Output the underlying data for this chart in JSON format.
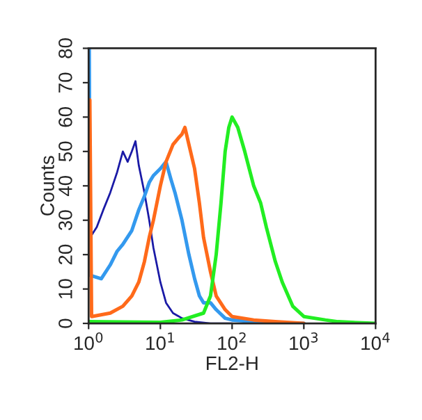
{
  "chart_data": {
    "type": "line",
    "xlabel": "FL2-H",
    "ylabel": "Counts",
    "log": "x",
    "xlim": [
      1,
      10000
    ],
    "ylim": [
      0,
      80
    ],
    "xticks": [
      {
        "value": 1,
        "label": "10$^{0}$"
      },
      {
        "value": 10,
        "label": "10$^{1}$"
      },
      {
        "value": 100,
        "label": "10$^{2}$"
      },
      {
        "value": 1000,
        "label": "10$^{3}$"
      },
      {
        "value": 10000,
        "label": "10$^{4}$"
      }
    ],
    "yticks": [
      0,
      10,
      20,
      30,
      40,
      50,
      60,
      70,
      80
    ],
    "grid": false,
    "marker": "none",
    "line_style": "solid",
    "series": [
      {
        "color": "#1a1aa6",
        "x": [
          1.05,
          1.3,
          1.6,
          2,
          2.5,
          3,
          3.5,
          4,
          4.5,
          5,
          6,
          7,
          8,
          10,
          12,
          15,
          20,
          30,
          50,
          100
        ],
        "values": [
          25,
          28,
          33,
          38,
          44,
          50,
          47,
          50,
          53,
          46,
          38,
          30,
          22,
          12,
          6,
          3,
          1.5,
          0.5,
          0,
          0
        ]
      },
      {
        "color": "#3399ee",
        "x": [
          1.02,
          1.05,
          1.5,
          2,
          2.5,
          3,
          4,
          5,
          6,
          7,
          8,
          10,
          12,
          14,
          16,
          20,
          25,
          30,
          35,
          40,
          50,
          60,
          80,
          100,
          200,
          300,
          1000
        ],
        "values": [
          80,
          14,
          13,
          17,
          21,
          23,
          27,
          33,
          37,
          41,
          43,
          45,
          47,
          42,
          38,
          30,
          20,
          13,
          8,
          6,
          6,
          4,
          1.5,
          1,
          0.5,
          0,
          0
        ]
      },
      {
        "color": "#ff6a1a",
        "x": [
          1.04,
          1.1,
          2,
          3,
          4,
          5,
          6,
          7,
          8,
          10,
          12,
          15,
          18,
          20,
          22,
          25,
          30,
          35,
          40,
          50,
          60,
          80,
          100,
          200,
          400,
          1000
        ],
        "values": [
          65,
          2,
          3,
          5,
          8,
          12,
          18,
          25,
          30,
          40,
          47,
          52,
          54,
          55,
          57,
          52,
          45,
          35,
          25,
          15,
          8,
          4,
          2,
          1,
          0.5,
          0
        ]
      },
      {
        "color": "#22ee22",
        "x": [
          1,
          10,
          20,
          40,
          50,
          60,
          70,
          80,
          90,
          100,
          120,
          150,
          200,
          250,
          300,
          400,
          500,
          700,
          1000,
          2000,
          3000,
          10000
        ],
        "values": [
          0.5,
          0.3,
          1,
          3,
          8,
          20,
          35,
          50,
          57,
          60,
          57,
          50,
          40,
          35,
          28,
          18,
          12,
          5,
          2,
          1,
          0.5,
          0
        ]
      }
    ]
  }
}
